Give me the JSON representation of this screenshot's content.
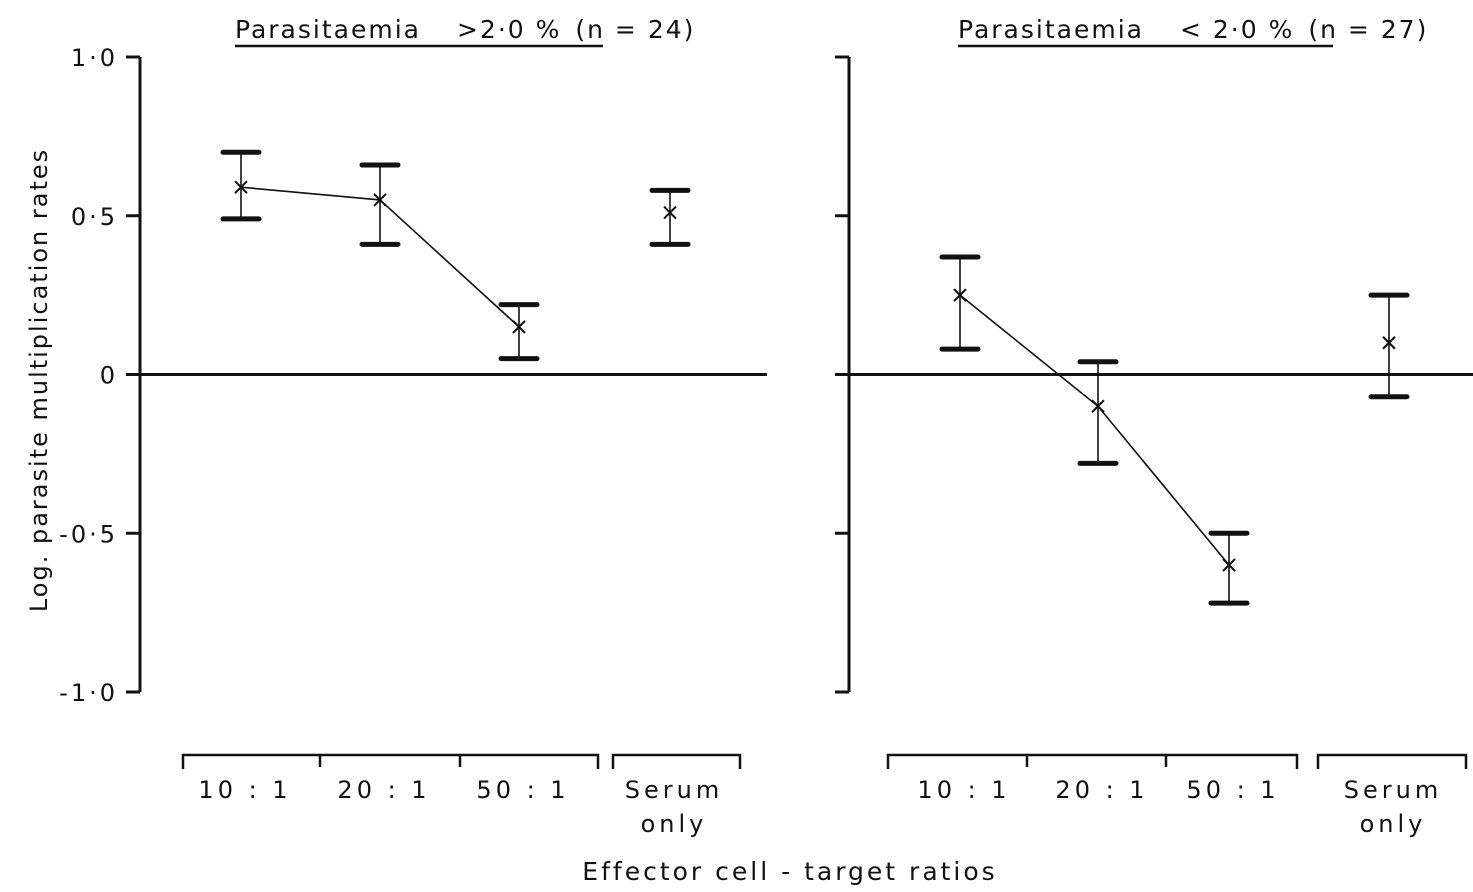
{
  "chart_data": {
    "type": "scatter",
    "ylabel": "Log. parasite multiplication rates",
    "xlabel": "Effector cell - target ratios",
    "ylim": [
      -1.0,
      1.0
    ],
    "yticks": [
      1.0,
      0.5,
      0,
      -0.5,
      -1.0
    ],
    "ytick_labels": [
      "1·0",
      "0·5",
      "0",
      "-0·5",
      "-1·0"
    ],
    "zero_line": true,
    "categories": [
      "10 : 1",
      "20 : 1",
      "50 : 1",
      "Serum only"
    ],
    "category_labels": [
      [
        "10 : 1"
      ],
      [
        "20 : 1"
      ],
      [
        "50 : 1"
      ],
      [
        "Serum",
        "only"
      ]
    ],
    "connected_categories": [
      "10 : 1",
      "20 : 1",
      "50 : 1"
    ],
    "panels": [
      {
        "title_underlined": "Parasitaemia",
        "title_condition": ">2·0 %",
        "title_n": "(n = 24)",
        "show_ytick_labels": true,
        "mean": [
          0.59,
          0.55,
          0.15,
          0.51
        ],
        "upper": [
          0.7,
          0.66,
          0.22,
          0.58
        ],
        "lower": [
          0.49,
          0.41,
          0.05,
          0.41
        ]
      },
      {
        "title_underlined": "Parasitaemia",
        "title_condition": "< 2·0 %",
        "title_n": "(n = 27)",
        "show_ytick_labels": false,
        "mean": [
          0.25,
          -0.1,
          -0.6,
          0.1
        ],
        "upper": [
          0.37,
          0.04,
          -0.5,
          0.25
        ],
        "lower": [
          0.08,
          -0.28,
          -0.72,
          -0.07
        ]
      }
    ]
  }
}
